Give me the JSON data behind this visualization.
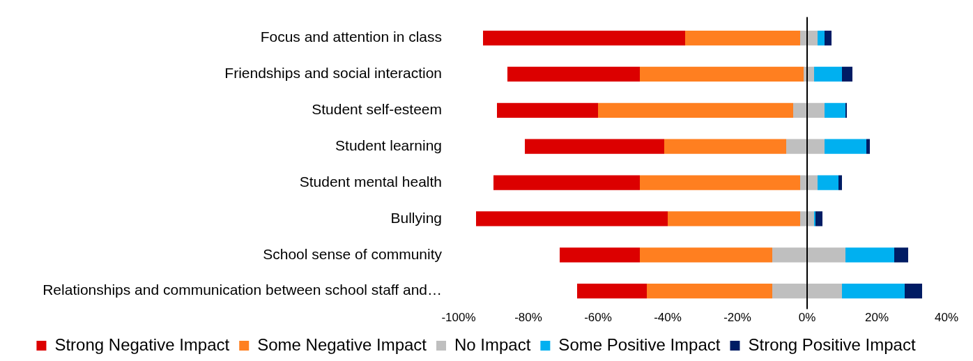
{
  "chart_data": {
    "type": "bar",
    "orientation": "horizontal",
    "categories": [
      "Focus and attention in class",
      "Friendships and social interaction",
      "Student self-esteem",
      "Student learning",
      "Student mental health",
      "Bullying",
      "School sense of community",
      "Relationships and communication between school staff and…"
    ],
    "series": [
      {
        "name": "Strong Negative Impact",
        "color": "#dc0000",
        "base": [
          -93,
          -86,
          -89,
          -81,
          -90,
          -95,
          -71,
          -66
        ],
        "values": [
          58,
          38,
          29,
          40,
          42,
          55,
          23,
          20
        ]
      },
      {
        "name": "Some Negative Impact",
        "color": "#ff7f20",
        "base": [
          -35,
          -48,
          -60,
          -41,
          -48,
          -40,
          -48,
          -46
        ],
        "values": [
          33,
          47,
          56,
          35,
          46,
          38,
          38,
          36
        ]
      },
      {
        "name": "No Impact",
        "color": "#bfbfbf",
        "base": [
          -2,
          -1,
          -4,
          -6,
          -2,
          -2,
          -10,
          -10
        ],
        "values": [
          5,
          3,
          9,
          11,
          5,
          4,
          21,
          20
        ]
      },
      {
        "name": "Some Positive Impact",
        "color": "#00b0f0",
        "base": [
          3,
          2,
          5,
          5,
          3,
          2,
          11,
          10
        ],
        "values": [
          2,
          8,
          6,
          12,
          6,
          0.4,
          14,
          18
        ]
      },
      {
        "name": "Strong Positive Impact",
        "color": "#001c64",
        "base": [
          5,
          10,
          11,
          17,
          9,
          2.4,
          25,
          28
        ],
        "values": [
          2,
          3,
          0.4,
          1,
          1,
          2,
          4,
          5
        ]
      }
    ],
    "xlim": [
      -100,
      40
    ],
    "xticks": [
      {
        "value": -100,
        "label": "-100%"
      },
      {
        "value": -80,
        "label": "-80%"
      },
      {
        "value": -60,
        "label": "-60%"
      },
      {
        "value": -40,
        "label": "-40%"
      },
      {
        "value": -20,
        "label": "-20%"
      },
      {
        "value": 0,
        "label": "0%"
      },
      {
        "value": 20,
        "label": "20%"
      },
      {
        "value": 40,
        "label": "40%"
      }
    ],
    "ref_lines": [
      {
        "axis": "x",
        "value": 0,
        "color": "#000000"
      }
    ],
    "grid": false,
    "legend": "bottom"
  }
}
